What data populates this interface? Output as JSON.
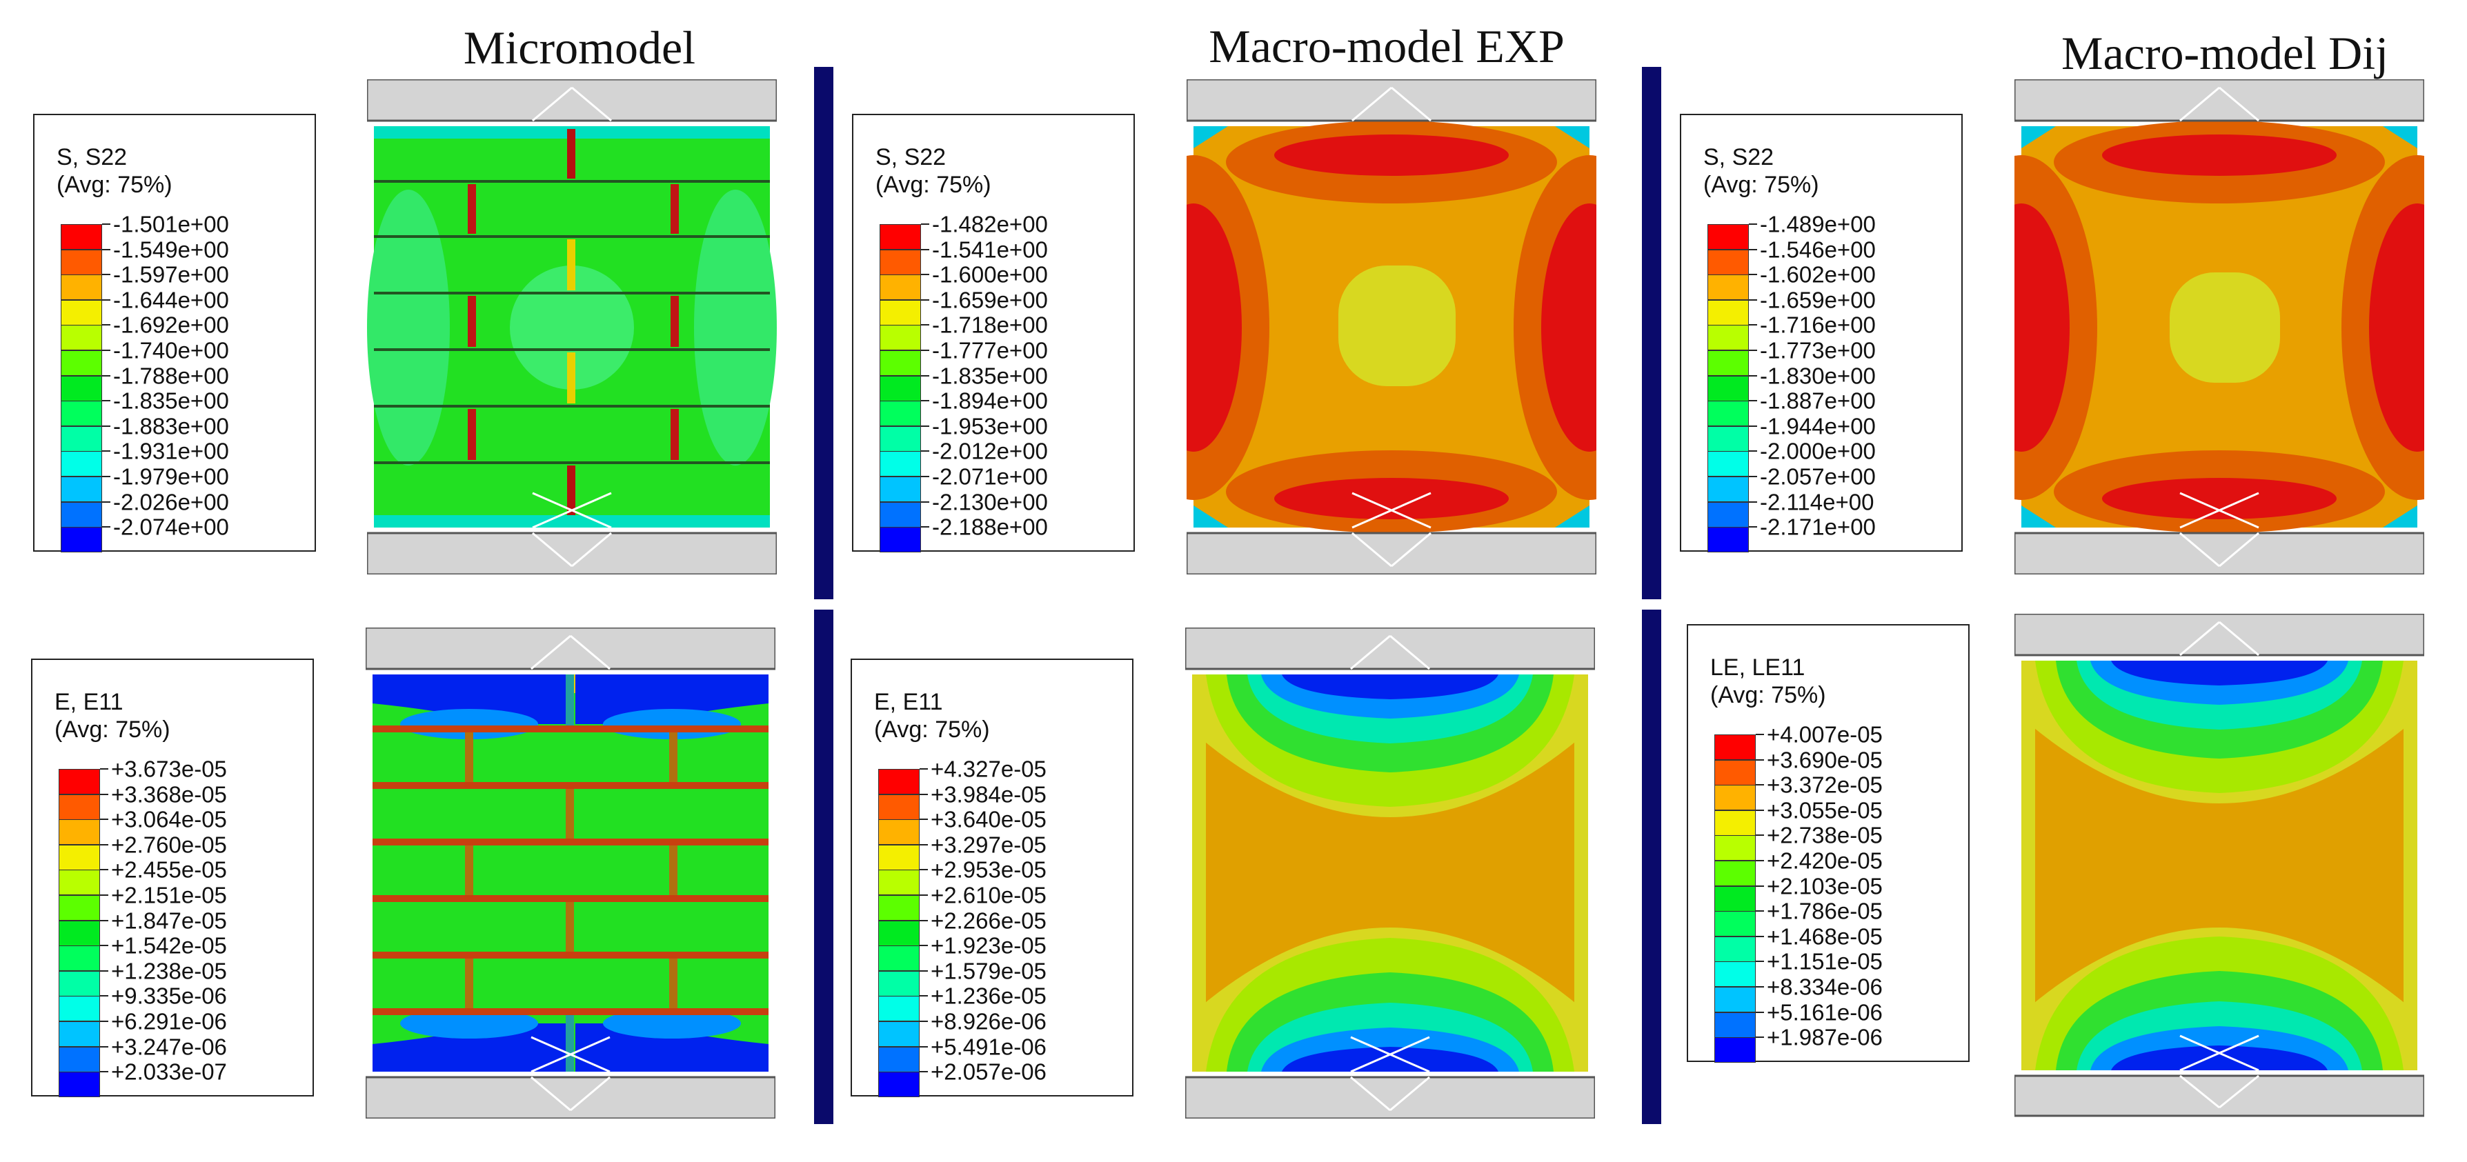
{
  "titles": {
    "micromodel": "Micromodel",
    "macro_exp": "Macro-model EXP",
    "macro_dij": "Macro-model Dij"
  },
  "colormap": [
    "#ff0000",
    "#ff5a00",
    "#ffb200",
    "#f4ef00",
    "#b9ff00",
    "#5cff00",
    "#00ea20",
    "#00ff5c",
    "#00ffa6",
    "#00ffe8",
    "#00c4ff",
    "#0072ff",
    "#0000ff"
  ],
  "legends": [
    {
      "variable": "S, S22",
      "avg": "(Avg: 75%)",
      "values": [
        "-1.501e+00",
        "-1.549e+00",
        "-1.597e+00",
        "-1.644e+00",
        "-1.692e+00",
        "-1.740e+00",
        "-1.788e+00",
        "-1.835e+00",
        "-1.883e+00",
        "-1.931e+00",
        "-1.979e+00",
        "-2.026e+00",
        "-2.074e+00"
      ]
    },
    {
      "variable": "S, S22",
      "avg": "(Avg: 75%)",
      "values": [
        "-1.482e+00",
        "-1.541e+00",
        "-1.600e+00",
        "-1.659e+00",
        "-1.718e+00",
        "-1.777e+00",
        "-1.835e+00",
        "-1.894e+00",
        "-1.953e+00",
        "-2.012e+00",
        "-2.071e+00",
        "-2.130e+00",
        "-2.188e+00"
      ]
    },
    {
      "variable": "S, S22",
      "avg": "(Avg: 75%)",
      "values": [
        "-1.489e+00",
        "-1.546e+00",
        "-1.602e+00",
        "-1.659e+00",
        "-1.716e+00",
        "-1.773e+00",
        "-1.830e+00",
        "-1.887e+00",
        "-1.944e+00",
        "-2.000e+00",
        "-2.057e+00",
        "-2.114e+00",
        "-2.171e+00"
      ]
    },
    {
      "variable": "E, E11",
      "avg": "(Avg: 75%)",
      "values": [
        "+3.673e-05",
        "+3.368e-05",
        "+3.064e-05",
        "+2.760e-05",
        "+2.455e-05",
        "+2.151e-05",
        "+1.847e-05",
        "+1.542e-05",
        "+1.238e-05",
        "+9.335e-06",
        "+6.291e-06",
        "+3.247e-06",
        "+2.033e-07"
      ]
    },
    {
      "variable": "E, E11",
      "avg": "(Avg: 75%)",
      "values": [
        "+4.327e-05",
        "+3.984e-05",
        "+3.640e-05",
        "+3.297e-05",
        "+2.953e-05",
        "+2.610e-05",
        "+2.266e-05",
        "+1.923e-05",
        "+1.579e-05",
        "+1.236e-05",
        "+8.926e-06",
        "+5.491e-06",
        "+2.057e-06"
      ]
    },
    {
      "variable": "LE, LE11",
      "avg": "(Avg: 75%)",
      "values": [
        "+4.007e-05",
        "+3.690e-05",
        "+3.372e-05",
        "+3.055e-05",
        "+2.738e-05",
        "+2.420e-05",
        "+2.103e-05",
        "+1.786e-05",
        "+1.468e-05",
        "+1.151e-05",
        "+8.334e-06",
        "+5.161e-06",
        "+1.987e-06"
      ]
    }
  ]
}
